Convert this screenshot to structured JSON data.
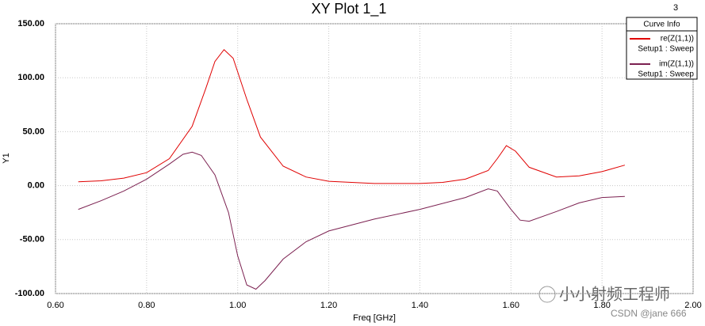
{
  "chart_data": {
    "type": "line",
    "title": "XY Plot 1_1",
    "corner_label": "3",
    "x_label": "Freq [GHz]",
    "y_label": "Y1",
    "legend_title": "Curve Info",
    "legend": "top-right",
    "xlim": [
      0.6,
      2.0
    ],
    "xticks": [
      {
        "value": 0.6,
        "label": "0.60"
      },
      {
        "value": 0.8,
        "label": "0.80"
      },
      {
        "value": 1.0,
        "label": "1.00"
      },
      {
        "value": 1.2,
        "label": "1.20"
      },
      {
        "value": 1.4,
        "label": "1.40"
      },
      {
        "value": 1.6,
        "label": "1.60"
      },
      {
        "value": 1.8,
        "label": "1.80"
      },
      {
        "value": 2.0,
        "label": "2.00"
      }
    ],
    "ylim": [
      -100,
      150
    ],
    "yticks": [
      {
        "value": -100,
        "label": "-100.00"
      },
      {
        "value": -50,
        "label": "-50.00"
      },
      {
        "value": 0,
        "label": "0.00"
      },
      {
        "value": 50,
        "label": "50.00"
      },
      {
        "value": 100,
        "label": "100.00"
      },
      {
        "value": 150,
        "label": "150.00"
      }
    ],
    "grid": true,
    "series": [
      {
        "name": "re(Z(1,1))",
        "setup": "Setup1 : Sweep",
        "color": "#e00000",
        "x": [
          0.65,
          0.7,
          0.75,
          0.8,
          0.85,
          0.9,
          0.93,
          0.95,
          0.97,
          0.99,
          1.02,
          1.05,
          1.1,
          1.15,
          1.2,
          1.3,
          1.4,
          1.45,
          1.5,
          1.55,
          1.57,
          1.59,
          1.61,
          1.64,
          1.7,
          1.75,
          1.8,
          1.85
        ],
        "values": [
          3.5,
          4.5,
          7,
          12,
          25,
          55,
          90,
          115,
          126,
          118,
          80,
          45,
          18,
          8,
          4,
          2,
          2,
          3,
          6,
          14,
          25,
          37,
          32,
          17,
          8,
          9,
          13,
          19
        ]
      },
      {
        "name": "im(Z(1,1))",
        "setup": "Setup1 : Sweep",
        "color": "#7b2050",
        "x": [
          0.65,
          0.7,
          0.75,
          0.8,
          0.85,
          0.88,
          0.9,
          0.92,
          0.95,
          0.98,
          1.0,
          1.02,
          1.04,
          1.06,
          1.1,
          1.15,
          1.2,
          1.3,
          1.4,
          1.5,
          1.55,
          1.57,
          1.6,
          1.62,
          1.64,
          1.7,
          1.75,
          1.8,
          1.85
        ],
        "values": [
          -22,
          -14,
          -5,
          6,
          20,
          29,
          31,
          28,
          10,
          -25,
          -65,
          -92,
          -96,
          -88,
          -68,
          -52,
          -42,
          -31,
          -22,
          -11,
          -3,
          -5,
          -22,
          -32,
          -33,
          -24,
          -16,
          -11,
          -10
        ]
      }
    ],
    "watermark": "小小射频工程师",
    "credit": "CSDN @jane 666"
  }
}
